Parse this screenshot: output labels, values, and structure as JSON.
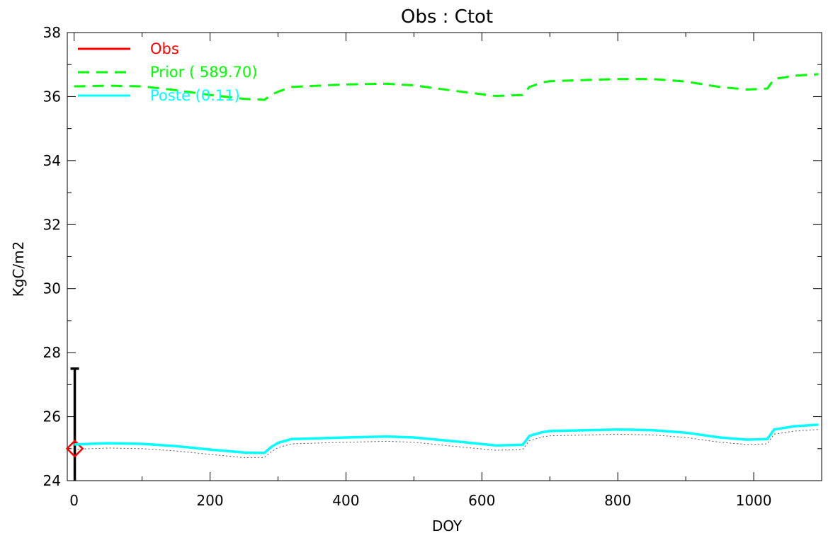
{
  "chart_data": {
    "type": "line",
    "title": "Obs : Ctot",
    "xlabel": "DOY",
    "ylabel": "KgC/m2",
    "xlim": [
      -10,
      1100
    ],
    "ylim": [
      24,
      38
    ],
    "x_ticks": [
      0,
      200,
      400,
      600,
      800,
      1000
    ],
    "y_ticks": [
      24,
      26,
      28,
      30,
      32,
      34,
      36,
      38
    ],
    "x_tick_labels": [
      "0",
      "200",
      "400",
      "600",
      "800",
      "1000"
    ],
    "y_tick_labels": [
      "24",
      "26",
      "28",
      "30",
      "32",
      "34",
      "36",
      "38"
    ],
    "grid": false,
    "legend_placement": "top-left",
    "legend": [
      {
        "label": "Obs",
        "color": "#ff0000",
        "style": "solid"
      },
      {
        "label": "Prior ( 589.70)",
        "color": "#00ff00",
        "style": "dashed"
      },
      {
        "label": "Poste (0.11)",
        "color": "#00ffff",
        "style": "solid"
      }
    ],
    "series": [
      {
        "name": "Obs",
        "color": "#ff0000",
        "marker": "diamond",
        "points": [
          {
            "x": 1,
            "y": 25.0,
            "err_low": 22.5,
            "err_high": 27.5
          }
        ]
      },
      {
        "name": "Prior",
        "color": "#00ff00",
        "style": "dashed",
        "x": [
          0,
          50,
          100,
          150,
          200,
          250,
          280,
          290,
          300,
          320,
          400,
          460,
          500,
          560,
          620,
          660,
          670,
          690,
          700,
          800,
          850,
          900,
          950,
          990,
          1020,
          1030,
          1060,
          1095
        ],
        "y": [
          36.32,
          36.34,
          36.32,
          36.2,
          36.05,
          35.93,
          35.9,
          36.05,
          36.15,
          36.3,
          36.38,
          36.4,
          36.35,
          36.18,
          36.02,
          36.05,
          36.3,
          36.45,
          36.48,
          36.55,
          36.55,
          36.47,
          36.3,
          36.22,
          36.25,
          36.55,
          36.65,
          36.7
        ]
      },
      {
        "name": "Poste",
        "color": "#00ffff",
        "style": "solid",
        "x": [
          0,
          50,
          100,
          150,
          200,
          250,
          280,
          290,
          300,
          320,
          400,
          460,
          500,
          560,
          620,
          660,
          670,
          690,
          700,
          800,
          850,
          900,
          950,
          990,
          1020,
          1030,
          1060,
          1095
        ],
        "y": [
          25.13,
          25.17,
          25.15,
          25.08,
          24.97,
          24.88,
          24.87,
          25.05,
          25.18,
          25.3,
          25.35,
          25.38,
          25.35,
          25.23,
          25.1,
          25.12,
          25.4,
          25.52,
          25.55,
          25.6,
          25.58,
          25.5,
          25.35,
          25.28,
          25.3,
          25.6,
          25.7,
          25.75
        ]
      },
      {
        "name": "",
        "color": "#555555",
        "style": "dotted",
        "x": [
          0,
          50,
          100,
          150,
          200,
          250,
          280,
          290,
          300,
          320,
          400,
          460,
          500,
          560,
          620,
          660,
          670,
          690,
          700,
          800,
          850,
          900,
          950,
          990,
          1020,
          1030,
          1060,
          1095
        ],
        "y": [
          24.98,
          25.02,
          25.0,
          24.93,
          24.82,
          24.72,
          24.72,
          24.9,
          25.03,
          25.15,
          25.2,
          25.23,
          25.2,
          25.07,
          24.95,
          24.97,
          25.25,
          25.37,
          25.4,
          25.45,
          25.43,
          25.35,
          25.2,
          25.13,
          25.15,
          25.45,
          25.55,
          25.6
        ]
      }
    ]
  }
}
